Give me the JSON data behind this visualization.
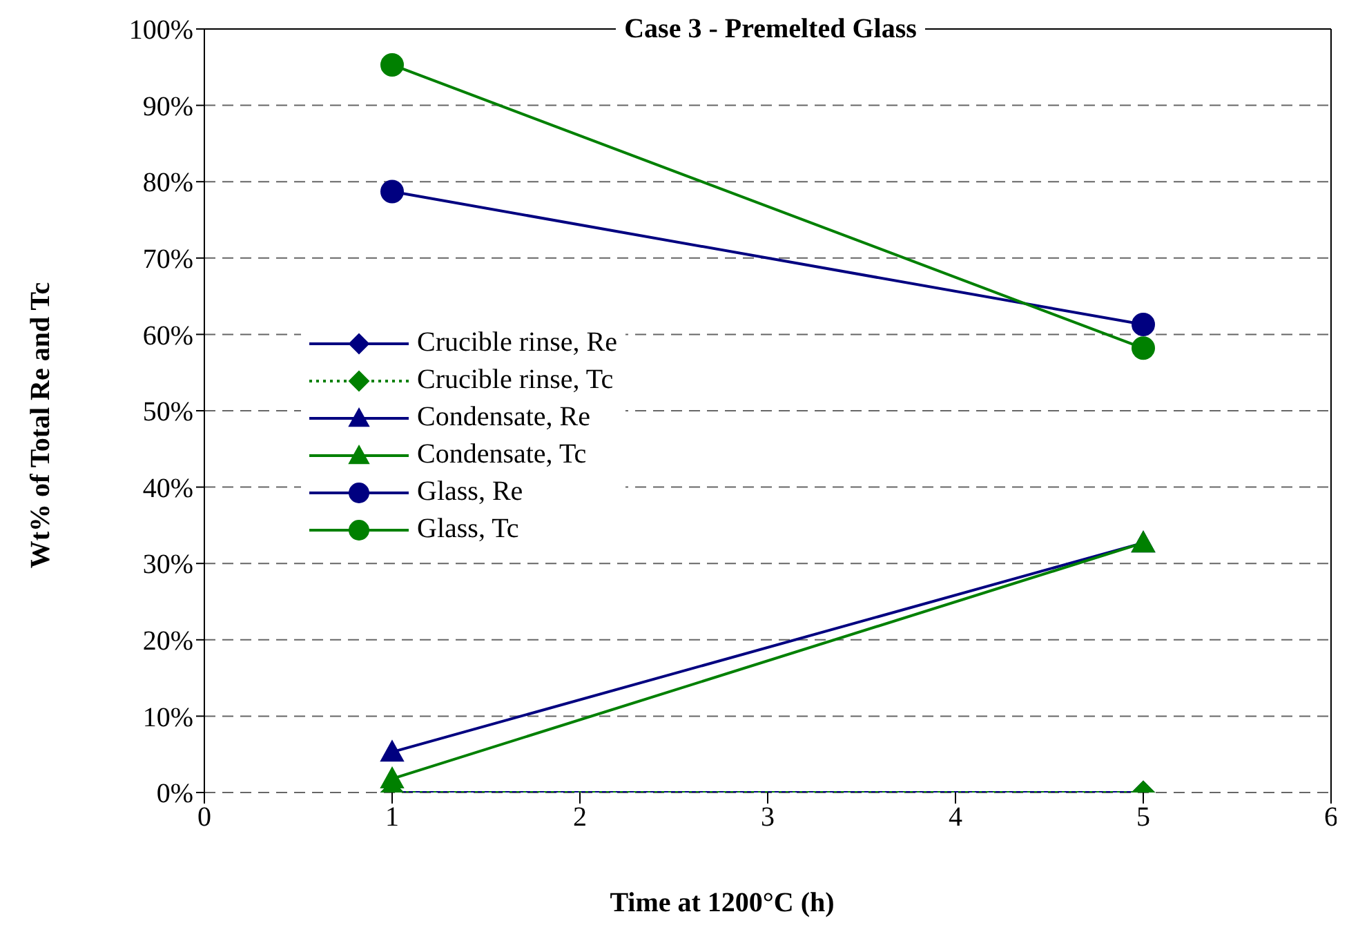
{
  "chart_data": {
    "type": "line",
    "title": "Case 3 - Premelted Glass",
    "xlabel": "Time at 1200°C (h)",
    "ylabel": "Wt% of Total Re and Tc",
    "x": [
      1,
      5
    ],
    "series": [
      {
        "name": "Crucible rinse, Re",
        "color": "#000080",
        "values": [
          0,
          0
        ],
        "marker": "diamond"
      },
      {
        "name": "Crucible rinse, Tc",
        "color": "#008000",
        "values": [
          0,
          0
        ],
        "marker": "diamond",
        "line_style": "dotted"
      },
      {
        "name": "Condensate, Re",
        "color": "#000080",
        "values": [
          5.3,
          32.7
        ],
        "marker": "triangle"
      },
      {
        "name": "Condensate, Tc",
        "color": "#008000",
        "values": [
          1.8,
          32.7
        ],
        "marker": "triangle"
      },
      {
        "name": "Glass, Re",
        "color": "#000080",
        "values": [
          78.7,
          61.3
        ],
        "marker": "circle"
      },
      {
        "name": "Glass, Tc",
        "color": "#008000",
        "values": [
          95.3,
          58.2
        ],
        "marker": "circle"
      }
    ],
    "xlim": [
      0,
      6
    ],
    "xticks": [
      0,
      1,
      2,
      3,
      4,
      5,
      6
    ],
    "ylim": [
      0,
      100
    ],
    "yticks": [
      {
        "value": 0,
        "label": "0%"
      },
      {
        "value": 10,
        "label": "10%"
      },
      {
        "value": 20,
        "label": "20%"
      },
      {
        "value": 30,
        "label": "30%"
      },
      {
        "value": 40,
        "label": "40%"
      },
      {
        "value": 50,
        "label": "50%"
      },
      {
        "value": 60,
        "label": "60%"
      },
      {
        "value": 70,
        "label": "70%"
      },
      {
        "value": 80,
        "label": "80%"
      },
      {
        "value": 90,
        "label": "90%"
      },
      {
        "value": 100,
        "label": "100%"
      }
    ],
    "grid": "y",
    "legend": "left",
    "line_style": "solid"
  }
}
